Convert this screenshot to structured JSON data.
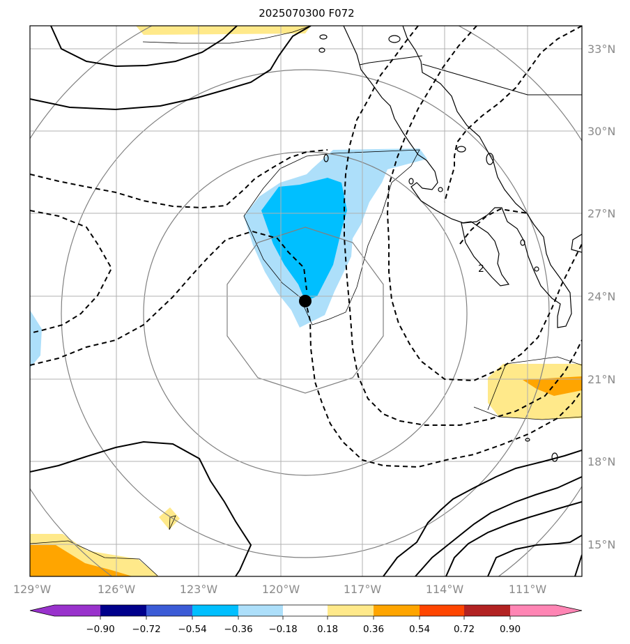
{
  "title": "2025070300 F072",
  "lat_labels": [
    "33°N",
    "30°N",
    "27°N",
    "24°N",
    "21°N",
    "18°N",
    "15°N"
  ],
  "lon_labels": [
    "129°W",
    "126°W",
    "123°W",
    "120°W",
    "117°W",
    "114°W",
    "111°W"
  ],
  "colorbar": {
    "ticks": [
      "−0.90",
      "−0.72",
      "−0.54",
      "−0.36",
      "−0.18",
      "0.18",
      "0.36",
      "0.54",
      "0.72",
      "0.90"
    ],
    "colors": [
      "#9932CC",
      "#00008B",
      "#3B5BD6",
      "#00BFFF",
      "#ADDFFA",
      "#FFFFFF",
      "#FFE98A",
      "#FFA500",
      "#FF4500",
      "#B22222",
      "#FF85B4"
    ]
  },
  "fill_colors": {
    "light_blue": "#ADDFFA",
    "blue": "#00BFFF",
    "yellow": "#FFE98A",
    "orange": "#FFA500"
  },
  "center_marker": {
    "lon": -119.1,
    "lat": 23.85
  }
}
